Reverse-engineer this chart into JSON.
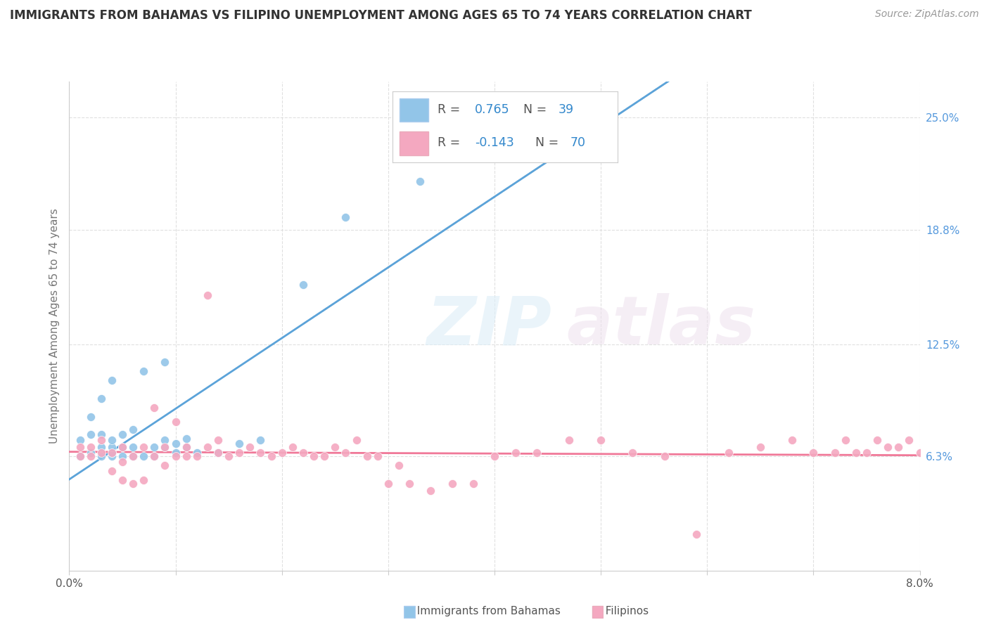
{
  "title": "IMMIGRANTS FROM BAHAMAS VS FILIPINO UNEMPLOYMENT AMONG AGES 65 TO 74 YEARS CORRELATION CHART",
  "source": "Source: ZipAtlas.com",
  "ylabel": "Unemployment Among Ages 65 to 74 years",
  "ytick_labels": [
    "6.3%",
    "12.5%",
    "18.8%",
    "25.0%"
  ],
  "ytick_positions": [
    0.063,
    0.125,
    0.188,
    0.25
  ],
  "xlim": [
    0.0,
    0.08
  ],
  "ylim": [
    0.0,
    0.27
  ],
  "legend_R1": "R = ",
  "legend_V1": "0.765",
  "legend_N1_label": "N = ",
  "legend_N1": "39",
  "legend_R2": "R = ",
  "legend_V2": "-0.143",
  "legend_N2_label": "N = ",
  "legend_N2": "70",
  "color_blue": "#92C5E8",
  "color_pink": "#F4A8C0",
  "color_blue_line": "#5BA3D9",
  "color_pink_line": "#F07898",
  "color_dashed": "#AAAAAA",
  "background": "#FFFFFF",
  "blue_scatter_x": [
    0.001,
    0.001,
    0.002,
    0.002,
    0.002,
    0.003,
    0.003,
    0.003,
    0.003,
    0.004,
    0.004,
    0.004,
    0.004,
    0.004,
    0.005,
    0.005,
    0.005,
    0.006,
    0.006,
    0.006,
    0.007,
    0.007,
    0.008,
    0.008,
    0.009,
    0.009,
    0.009,
    0.01,
    0.01,
    0.011,
    0.011,
    0.012,
    0.014,
    0.016,
    0.018,
    0.022,
    0.026,
    0.033,
    0.043
  ],
  "blue_scatter_y": [
    0.063,
    0.072,
    0.065,
    0.075,
    0.085,
    0.063,
    0.068,
    0.075,
    0.095,
    0.063,
    0.065,
    0.068,
    0.072,
    0.105,
    0.063,
    0.068,
    0.075,
    0.063,
    0.068,
    0.078,
    0.063,
    0.11,
    0.063,
    0.068,
    0.068,
    0.072,
    0.115,
    0.065,
    0.07,
    0.068,
    0.073,
    0.065,
    0.065,
    0.07,
    0.072,
    0.158,
    0.195,
    0.215,
    0.228
  ],
  "pink_scatter_x": [
    0.001,
    0.001,
    0.002,
    0.002,
    0.003,
    0.003,
    0.004,
    0.004,
    0.005,
    0.005,
    0.005,
    0.006,
    0.006,
    0.007,
    0.007,
    0.008,
    0.008,
    0.009,
    0.009,
    0.01,
    0.01,
    0.011,
    0.011,
    0.012,
    0.013,
    0.013,
    0.014,
    0.014,
    0.015,
    0.016,
    0.017,
    0.018,
    0.019,
    0.02,
    0.021,
    0.022,
    0.023,
    0.024,
    0.025,
    0.026,
    0.027,
    0.028,
    0.029,
    0.03,
    0.031,
    0.032,
    0.034,
    0.036,
    0.038,
    0.04,
    0.042,
    0.044,
    0.047,
    0.05,
    0.053,
    0.056,
    0.059,
    0.062,
    0.065,
    0.068,
    0.07,
    0.072,
    0.073,
    0.074,
    0.075,
    0.076,
    0.077,
    0.078,
    0.079,
    0.08
  ],
  "pink_scatter_y": [
    0.063,
    0.068,
    0.063,
    0.068,
    0.065,
    0.072,
    0.055,
    0.065,
    0.05,
    0.06,
    0.068,
    0.048,
    0.063,
    0.05,
    0.068,
    0.063,
    0.09,
    0.058,
    0.068,
    0.063,
    0.082,
    0.063,
    0.068,
    0.063,
    0.152,
    0.068,
    0.065,
    0.072,
    0.063,
    0.065,
    0.068,
    0.065,
    0.063,
    0.065,
    0.068,
    0.065,
    0.063,
    0.063,
    0.068,
    0.065,
    0.072,
    0.063,
    0.063,
    0.048,
    0.058,
    0.048,
    0.044,
    0.048,
    0.048,
    0.063,
    0.065,
    0.065,
    0.072,
    0.072,
    0.065,
    0.063,
    0.02,
    0.065,
    0.068,
    0.072,
    0.065,
    0.065,
    0.072,
    0.065,
    0.065,
    0.072,
    0.068,
    0.068,
    0.072,
    0.065
  ]
}
